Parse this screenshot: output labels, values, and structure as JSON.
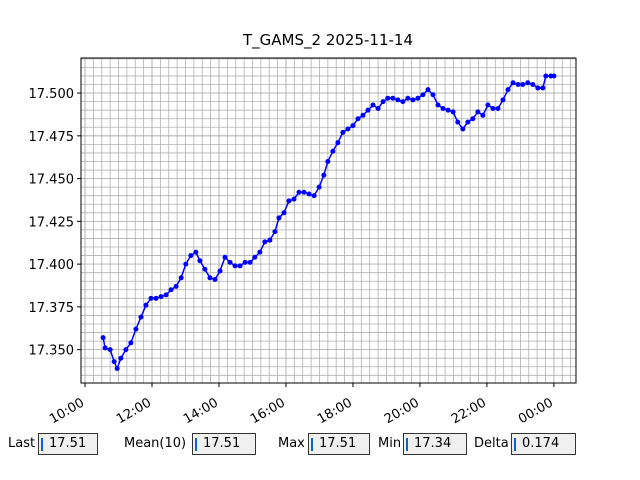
{
  "chart_data": {
    "type": "line",
    "title": "T_GAMS_2 2025-11-14",
    "color": "#0000ff",
    "grid": true,
    "x": [
      10.54,
      10.6,
      10.75,
      10.87,
      10.96,
      11.07,
      11.22,
      11.37,
      11.52,
      11.67,
      11.82,
      11.97,
      12.12,
      12.27,
      12.42,
      12.57,
      12.72,
      12.87,
      13.01,
      13.16,
      13.31,
      13.43,
      13.58,
      13.73,
      13.88,
      14.03,
      14.18,
      14.33,
      14.48,
      14.63,
      14.78,
      14.93,
      15.07,
      15.22,
      15.37,
      15.52,
      15.67,
      15.79,
      15.94,
      16.09,
      16.24,
      16.39,
      16.54,
      16.69,
      16.84,
      16.99,
      17.13,
      17.25,
      17.4,
      17.55,
      17.7,
      17.85,
      18.0,
      18.15,
      18.3,
      18.45,
      18.6,
      18.75,
      18.9,
      19.04,
      19.19,
      19.34,
      19.49,
      19.64,
      19.79,
      19.94,
      20.09,
      20.24,
      20.39,
      20.54,
      20.69,
      20.84,
      20.99,
      21.13,
      21.28,
      21.43,
      21.58,
      21.73,
      21.88,
      22.03,
      22.18,
      22.33,
      22.48,
      22.63,
      22.78,
      22.93,
      23.07,
      23.22,
      23.37,
      23.52,
      23.67,
      23.76,
      23.91,
      24.0
    ],
    "values": [
      17.357,
      17.351,
      17.35,
      17.343,
      17.339,
      17.345,
      17.35,
      17.354,
      17.362,
      17.369,
      17.376,
      17.38,
      17.38,
      17.381,
      17.382,
      17.385,
      17.387,
      17.392,
      17.4,
      17.405,
      17.407,
      17.402,
      17.397,
      17.392,
      17.391,
      17.396,
      17.404,
      17.401,
      17.399,
      17.399,
      17.401,
      17.401,
      17.404,
      17.407,
      17.413,
      17.414,
      17.419,
      17.427,
      17.43,
      17.437,
      17.438,
      17.442,
      17.442,
      17.441,
      17.44,
      17.445,
      17.452,
      17.46,
      17.466,
      17.471,
      17.477,
      17.479,
      17.481,
      17.485,
      17.487,
      17.49,
      17.493,
      17.491,
      17.495,
      17.497,
      17.497,
      17.496,
      17.495,
      17.497,
      17.496,
      17.497,
      17.499,
      17.502,
      17.499,
      17.493,
      17.491,
      17.49,
      17.489,
      17.483,
      17.479,
      17.483,
      17.485,
      17.489,
      17.487,
      17.493,
      17.491,
      17.491,
      17.496,
      17.502,
      17.506,
      17.505,
      17.505,
      17.506,
      17.505,
      17.503,
      17.503,
      17.51,
      17.51,
      17.51
    ],
    "xlim": [
      9.88,
      24.66
    ],
    "xticks": [
      {
        "value": 10,
        "label": "10:00"
      },
      {
        "value": 12,
        "label": "12:00"
      },
      {
        "value": 14,
        "label": "14:00"
      },
      {
        "value": 16,
        "label": "16:00"
      },
      {
        "value": 18,
        "label": "18:00"
      },
      {
        "value": 20,
        "label": "20:00"
      },
      {
        "value": 22,
        "label": "22:00"
      },
      {
        "value": 24,
        "label": "00:00"
      }
    ],
    "ylim": [
      17.3305,
      17.5205
    ],
    "yticks": [
      {
        "value": 17.35,
        "label": "17.350"
      },
      {
        "value": 17.375,
        "label": "17.375"
      },
      {
        "value": 17.4,
        "label": "17.400"
      },
      {
        "value": 17.425,
        "label": "17.425"
      },
      {
        "value": 17.45,
        "label": "17.450"
      },
      {
        "value": 17.475,
        "label": "17.475"
      },
      {
        "value": 17.5,
        "label": "17.500"
      }
    ]
  },
  "stats": [
    {
      "label": "Last",
      "value": "17.51"
    },
    {
      "label": "Mean(10)",
      "value": "17.51"
    },
    {
      "label": "Max",
      "value": "17.51"
    },
    {
      "label": "Min",
      "value": "17.34"
    },
    {
      "label": "Delta",
      "value": "0.174"
    }
  ]
}
